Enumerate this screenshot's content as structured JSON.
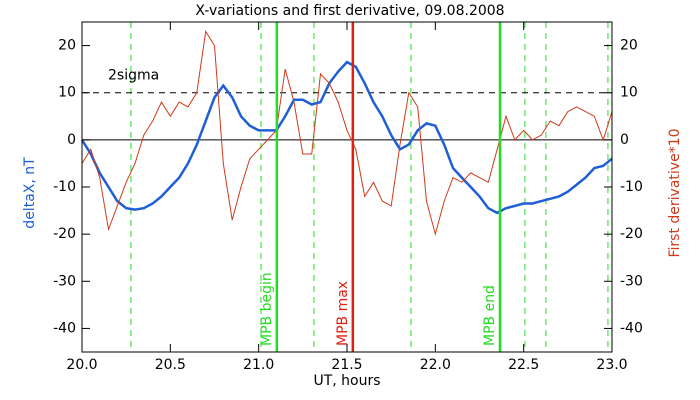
{
  "chart_data": {
    "type": "line",
    "title": "X-variations and first derivative, 09.08.2008",
    "xlabel": "UT, hours",
    "ylabel": "deltaX, nT",
    "y2label": "First derivative*10",
    "x": [
      20.0,
      20.05,
      20.1,
      20.15,
      20.2,
      20.25,
      20.3,
      20.35,
      20.4,
      20.45,
      20.5,
      20.55,
      20.6,
      20.65,
      20.7,
      20.75,
      20.8,
      20.85,
      20.9,
      20.95,
      21.0,
      21.05,
      21.1,
      21.15,
      21.2,
      21.25,
      21.3,
      21.35,
      21.4,
      21.45,
      21.5,
      21.55,
      21.6,
      21.65,
      21.7,
      21.75,
      21.8,
      21.85,
      21.9,
      21.95,
      22.0,
      22.05,
      22.1,
      22.15,
      22.2,
      22.25,
      22.3,
      22.35,
      22.4,
      22.45,
      22.5,
      22.55,
      22.6,
      22.65,
      22.7,
      22.75,
      22.8,
      22.85,
      22.9,
      22.95,
      23.0
    ],
    "series": [
      {
        "name": "deltaX, nT",
        "color": "#1f5fd6",
        "axis": "y",
        "values": [
          0,
          -3,
          -7,
          -10,
          -13,
          -14.5,
          -14.8,
          -14.5,
          -13.5,
          -12,
          -10,
          -8,
          -5,
          -1,
          4,
          9,
          11.5,
          9,
          5,
          3,
          2,
          2,
          2,
          5,
          8.5,
          8.5,
          7.5,
          8,
          12,
          14.5,
          16.5,
          15.5,
          12,
          8,
          5,
          1,
          -2,
          -1,
          2,
          3.5,
          3,
          -1,
          -6,
          -8,
          -10,
          -12,
          -14.5,
          -15.5,
          -14.5,
          -14,
          -13.5,
          -13.5,
          -13,
          -12.5,
          -12,
          -11,
          -9.5,
          -8,
          -6,
          -5.5,
          -4
        ]
      },
      {
        "name": "First derivative*10",
        "color": "#d03a1a",
        "axis": "y2",
        "values": [
          -5,
          -2,
          -8,
          -19,
          -14,
          -9,
          -5,
          1,
          4,
          8,
          5,
          8,
          7,
          10,
          23,
          20,
          -5,
          -17,
          -10,
          -4,
          -2,
          0,
          2,
          15,
          8,
          -3,
          -3,
          14,
          12,
          8,
          2,
          -2,
          -12,
          -9,
          -13,
          -14,
          -1,
          10,
          7,
          -13,
          -20,
          -13,
          -8,
          -9,
          -7,
          -8,
          -9,
          -2,
          5,
          0,
          2,
          0,
          1,
          4,
          3,
          6,
          7,
          6,
          5,
          0,
          6
        ]
      }
    ],
    "xlim": [
      20.0,
      23.0
    ],
    "xticks": [
      {
        "value": 20.0,
        "label": "20.0"
      },
      {
        "value": 20.5,
        "label": "20.5"
      },
      {
        "value": 21.0,
        "label": "21.0"
      },
      {
        "value": 21.5,
        "label": "21.5"
      },
      {
        "value": 22.0,
        "label": "22.0"
      },
      {
        "value": 22.5,
        "label": "22.5"
      },
      {
        "value": 23.0,
        "label": "23.0"
      }
    ],
    "ylim": [
      -45,
      25
    ],
    "yticks": [
      -40,
      -30,
      -20,
      -10,
      0,
      10,
      20
    ],
    "y2lim": [
      -45,
      25
    ],
    "y2ticks": [
      -40,
      -30,
      -20,
      -10,
      0,
      10,
      20
    ],
    "hlines": [
      {
        "value": 10,
        "label": "2sigma",
        "dashed": true
      },
      {
        "value": 0,
        "dashed": false
      }
    ],
    "dashed_vlines": {
      "color": "#22dd22",
      "values": [
        20.277,
        21.013,
        21.313,
        21.862,
        22.507,
        22.626,
        22.977
      ]
    },
    "vlines": [
      {
        "value": 21.103,
        "label": "MPB begin",
        "color": "#22dd22"
      },
      {
        "value": 21.533,
        "label": "MPB max",
        "color": "#e02010"
      },
      {
        "value": 22.366,
        "label": "MPB end",
        "color": "#22dd22"
      }
    ]
  }
}
